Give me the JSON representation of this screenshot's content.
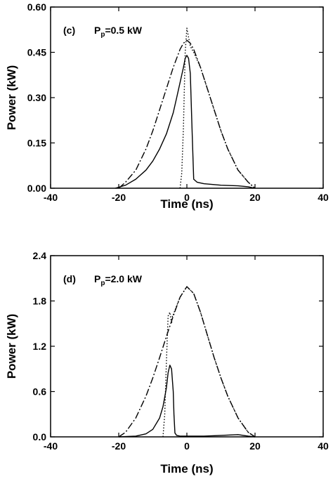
{
  "chart_data": [
    {
      "type": "line",
      "panel_label": "(c)",
      "annotation": {
        "p": "P",
        "sub": "p",
        "rest": "=0.5 kW"
      },
      "xlabel": "Time   (ns)",
      "ylabel": "Power   (kW)",
      "xlim": [
        -40,
        40
      ],
      "ylim": [
        0,
        0.6
      ],
      "xticks": [
        "-40",
        "-20",
        "0",
        "20",
        "40"
      ],
      "yticks": [
        "0.00",
        "0.15",
        "0.30",
        "0.45",
        "0.60"
      ],
      "grid": false,
      "series": [
        {
          "style": "solid",
          "x": [
            -21,
            -18,
            -15,
            -12,
            -10,
            -8,
            -6,
            -4,
            -3,
            -2,
            -1,
            -0.5,
            0,
            0.5,
            1,
            1.5,
            2,
            3,
            5,
            10,
            15,
            18,
            20
          ],
          "y": [
            0.0,
            0.01,
            0.03,
            0.06,
            0.09,
            0.13,
            0.18,
            0.25,
            0.3,
            0.35,
            0.4,
            0.43,
            0.44,
            0.43,
            0.38,
            0.2,
            0.03,
            0.02,
            0.015,
            0.01,
            0.008,
            0.005,
            0.0
          ]
        },
        {
          "style": "dashdot",
          "x": [
            -20,
            -18,
            -15,
            -12,
            -10,
            -8,
            -6,
            -4,
            -2,
            -1,
            0,
            1,
            2,
            4,
            6,
            8,
            10,
            12,
            15,
            18,
            20
          ],
          "y": [
            0.0,
            0.02,
            0.06,
            0.13,
            0.19,
            0.26,
            0.33,
            0.4,
            0.46,
            0.48,
            0.49,
            0.48,
            0.46,
            0.4,
            0.33,
            0.26,
            0.19,
            0.13,
            0.06,
            0.02,
            0.0
          ]
        },
        {
          "style": "dotted",
          "x": [
            -2,
            -1.5,
            -1,
            -0.5,
            0,
            0.5,
            1,
            2,
            4,
            6,
            8,
            10,
            12,
            15,
            18,
            20
          ],
          "y": [
            0.0,
            0.05,
            0.2,
            0.45,
            0.53,
            0.5,
            0.47,
            0.45,
            0.4,
            0.33,
            0.26,
            0.19,
            0.13,
            0.06,
            0.02,
            0.0
          ]
        }
      ]
    },
    {
      "type": "line",
      "panel_label": "(d)",
      "annotation": {
        "p": "P",
        "sub": "p",
        "rest": "=2.0 kW"
      },
      "xlabel": "Time   (ns)",
      "ylabel": "Power   (kW)",
      "xlim": [
        -40,
        40
      ],
      "ylim": [
        0,
        2.4
      ],
      "xticks": [
        "-40",
        "-20",
        "0",
        "20",
        "40"
      ],
      "yticks": [
        "0.0",
        "0.6",
        "1.2",
        "1.8",
        "2.4"
      ],
      "grid": false,
      "series": [
        {
          "style": "solid",
          "x": [
            -20,
            -15,
            -12,
            -10,
            -8,
            -7,
            -6,
            -5.5,
            -5,
            -4.5,
            -4,
            -3.8,
            -3.5,
            -3,
            -2,
            0,
            5,
            10,
            15,
            18,
            20
          ],
          "y": [
            0.0,
            0.01,
            0.04,
            0.1,
            0.25,
            0.4,
            0.65,
            0.85,
            0.95,
            0.9,
            0.6,
            0.3,
            0.05,
            0.02,
            0.01,
            0.01,
            0.01,
            0.02,
            0.03,
            0.01,
            0.0
          ]
        },
        {
          "style": "dashdot",
          "x": [
            -20,
            -18,
            -15,
            -12,
            -10,
            -8,
            -6,
            -4,
            -2,
            0,
            2,
            4,
            6,
            8,
            10,
            12,
            15,
            18,
            20
          ],
          "y": [
            0.0,
            0.06,
            0.25,
            0.54,
            0.78,
            1.05,
            1.33,
            1.6,
            1.85,
            1.99,
            1.9,
            1.65,
            1.35,
            1.05,
            0.78,
            0.54,
            0.25,
            0.06,
            0.0
          ]
        },
        {
          "style": "dotted",
          "x": [
            -7,
            -6.5,
            -6,
            -5.5,
            -5,
            -4.5,
            -4.2,
            -4,
            -2,
            0,
            2,
            4,
            6,
            8,
            10,
            12,
            15,
            18,
            20
          ],
          "y": [
            0.0,
            0.3,
            1.0,
            1.6,
            1.65,
            1.5,
            1.62,
            1.62,
            1.85,
            1.99,
            1.9,
            1.65,
            1.35,
            1.05,
            0.78,
            0.54,
            0.25,
            0.06,
            0.0
          ]
        }
      ]
    }
  ]
}
